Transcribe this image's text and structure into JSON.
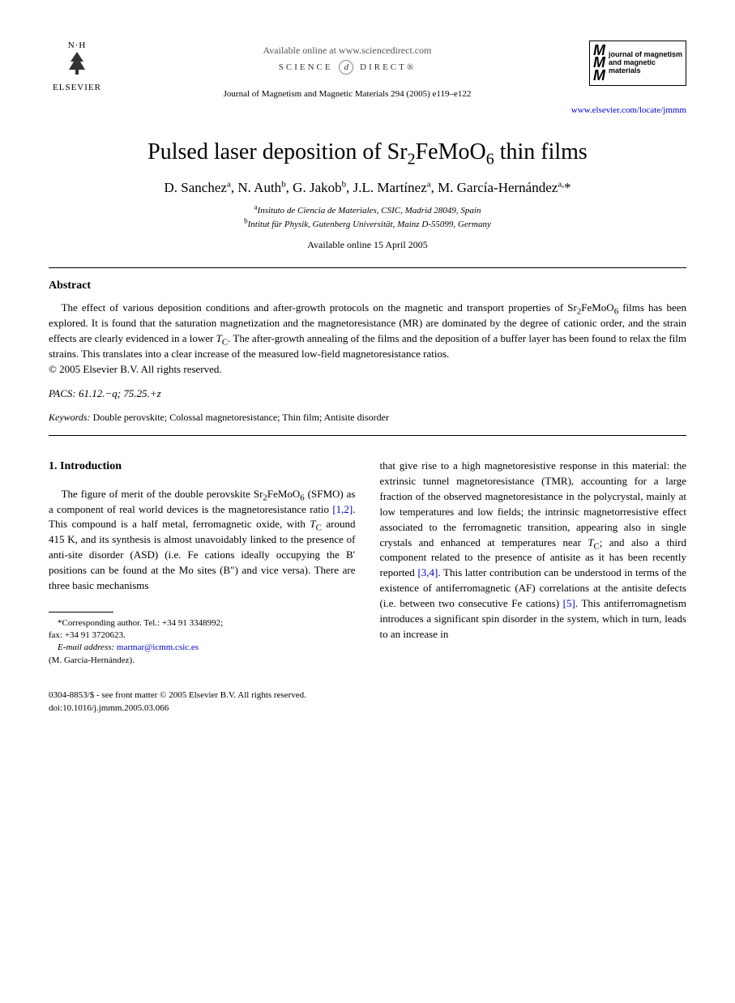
{
  "header": {
    "publisher_nh": "N·H",
    "publisher_name": "ELSEVIER",
    "online_text": "Available online at www.sciencedirect.com",
    "sd_left": "SCIENCE",
    "sd_at": "d",
    "sd_right": "DIRECT®",
    "citation": "Journal of Magnetism and Magnetic Materials 294 (2005) e119–e122",
    "journal_mmm": "M\nM\nM",
    "journal_title": "journal of magnetism and magnetic materials",
    "locate_url": "www.elsevier.com/locate/jmmm"
  },
  "title_html": "Pulsed laser deposition of Sr<sub>2</sub>FeMoO<sub>6</sub> thin films",
  "authors_html": "D. Sanchez<sup>a</sup>, N. Auth<sup>b</sup>, G. Jakob<sup>b</sup>, J.L. Martínez<sup>a</sup>, M. García-Hernández<sup>a,</sup>*",
  "affiliations": {
    "a": "Insituto de Ciencia de Materiales, CSIC, Madrid 28049, Spain",
    "b": "Intitut für Physik, Gutenberg Universität, Mainz D-55099, Germany"
  },
  "available_date": "Available online 15 April 2005",
  "abstract": {
    "label": "Abstract",
    "text_html": "The effect of various deposition conditions and after-growth protocols on the magnetic and transport properties of Sr<sub>2</sub>FeMoO<sub>6</sub> films has been explored. It is found that the saturation magnetization and the magnetoresistance (MR) are dominated by the degree of cationic order, and the strain effects are clearly evidenced in a lower <i>T</i><sub>C</sub>. The after-growth annealing of the films and the deposition of a buffer layer has been found to relax the film strains. This translates into a clear increase of the measured low-field magnetoresistance ratios.",
    "copyright": "© 2005 Elsevier B.V. All rights reserved."
  },
  "pacs": {
    "label": "PACS:",
    "value": "61.12.−q; 75.25.+z"
  },
  "keywords": {
    "label": "Keywords:",
    "value": "Double perovskite; Colossal magnetoresistance; Thin film; Antisite disorder"
  },
  "section1": {
    "heading": "1. Introduction",
    "col1_html": "The figure of merit of the double perovskite Sr<sub>2</sub>FeMoO<sub>6</sub> (SFMO) as a component of real world devices is the magnetoresistance ratio <span class=\"ref-link\">[1,2]</span>. This compound is a half metal, ferromagnetic oxide, with <i>T</i><sub>C</sub> around 415 K, and its synthesis is almost unavoidably linked to the presence of anti-site disorder (ASD) (i.e. Fe cations ideally occupying the B′ positions can be found at the Mo sites (B″) and vice versa). There are three basic mechanisms",
    "col2_html": "that give rise to a high magnetoresistive response in this material: the extrinsic tunnel magnetoresistance (TMR), accounting for a large fraction of the observed magnetoresistance in the polycrystal, mainly at low temperatures and low fields; the intrinsic magnetorresistive effect associated to the ferromagnetic transition, appearing also in single crystals and enhanced at temperatures near <i>T</i><sub>C</sub>; and also a third component related to the presence of antisite as it has been recently reported <span class=\"ref-link\">[3,4]</span>. This latter contribution can be understood in terms of the existence of antiferromagnetic (AF) correlations at the antisite defects (i.e. between two consecutive Fe cations) <span class=\"ref-link\">[5]</span>. This antiferromagnetism introduces a significant spin disorder in the system, which in turn, leads to an increase in"
  },
  "corresponding": {
    "line1": "*Corresponding author. Tel.: +34 91 3348992;",
    "line2": "fax: +34 91 3720623.",
    "email_label": "E-mail address:",
    "email": "marmar@icmm.csic.es",
    "person": "(M. García-Hernández)."
  },
  "footer": {
    "line1": "0304-8853/$ - see front matter © 2005 Elsevier B.V. All rights reserved.",
    "line2": "doi:10.1016/j.jmmm.2005.03.066"
  }
}
